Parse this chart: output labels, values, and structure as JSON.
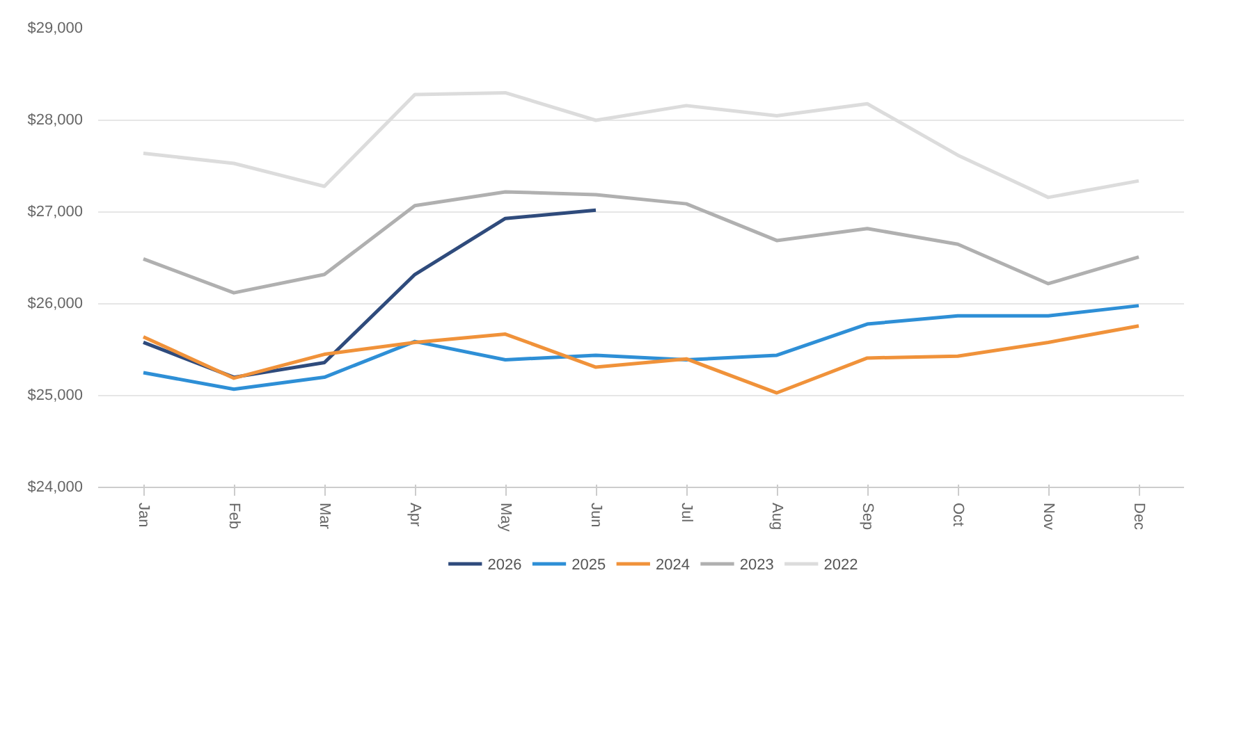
{
  "chart_data": {
    "type": "line",
    "categories": [
      "Jan",
      "Feb",
      "Mar",
      "Apr",
      "May",
      "Jun",
      "Jul",
      "Aug",
      "Sep",
      "Oct",
      "Nov",
      "Dec"
    ],
    "ylim": [
      24000,
      29000
    ],
    "yticks": [
      {
        "value": 24000,
        "label": "$24,000"
      },
      {
        "value": 25000,
        "label": "$25,000"
      },
      {
        "value": 26000,
        "label": "$26,000"
      },
      {
        "value": 27000,
        "label": "$27,000"
      },
      {
        "value": 28000,
        "label": "$28,000"
      },
      {
        "value": 29000,
        "label": "$29,000"
      }
    ],
    "grid": "y",
    "legend": "bottom",
    "line_style": "solid",
    "series": [
      {
        "name": "2026",
        "color": "#2f4b7c",
        "values": [
          25580,
          25200,
          25360,
          26320,
          26930,
          27020,
          null,
          null,
          null,
          null,
          null,
          null
        ]
      },
      {
        "name": "2025",
        "color": "#2e8fd6",
        "values": [
          25250,
          25070,
          25200,
          25590,
          25390,
          25440,
          25390,
          25440,
          25780,
          25870,
          25870,
          25980
        ]
      },
      {
        "name": "2024",
        "color": "#f0923a",
        "values": [
          25640,
          25190,
          25450,
          25580,
          25670,
          25310,
          25400,
          25030,
          25410,
          25430,
          25580,
          25760
        ]
      },
      {
        "name": "2023",
        "color": "#b0b0b0",
        "values": [
          26490,
          26120,
          26320,
          27070,
          27220,
          27190,
          27090,
          26690,
          26820,
          26650,
          26220,
          26510
        ]
      },
      {
        "name": "2022",
        "color": "#dcdcdc",
        "values": [
          27640,
          27530,
          27280,
          28280,
          28300,
          28000,
          28160,
          28050,
          28180,
          27620,
          27160,
          27340
        ]
      }
    ]
  }
}
